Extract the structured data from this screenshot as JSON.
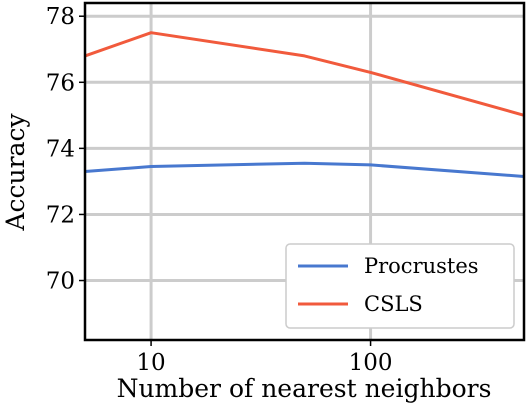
{
  "chart_data": {
    "type": "line",
    "xscale": "log",
    "x": [
      5,
      10,
      50,
      100,
      500
    ],
    "xlim": [
      5,
      500
    ],
    "ylim": [
      68.2,
      78.4
    ],
    "xticks": [
      10,
      100
    ],
    "xtick_labels": [
      "10",
      "100"
    ],
    "yticks": [
      70,
      72,
      74,
      76,
      78
    ],
    "ytick_labels": [
      "70",
      "72",
      "74",
      "76",
      "78"
    ],
    "xlabel": "Number of nearest neighbors",
    "ylabel": "Accuracy",
    "grid": true,
    "legend_position": "lower-right",
    "series": [
      {
        "name": "Procrustes",
        "color": "#4878cf",
        "values": [
          73.3,
          73.45,
          73.55,
          73.5,
          73.15
        ]
      },
      {
        "name": "CSLS",
        "color": "#f15a3c",
        "values": [
          76.8,
          77.5,
          76.8,
          76.3,
          75.0
        ]
      }
    ]
  }
}
